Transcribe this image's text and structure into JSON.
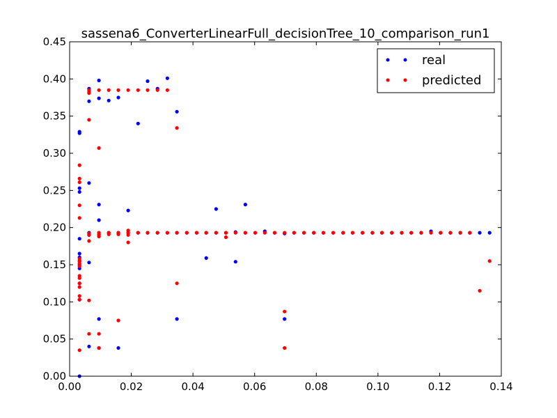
{
  "chart_data": {
    "type": "scatter",
    "title": "sassena6_ConverterLinearFull_decisionTree_10_comparison_run1",
    "xlabel": "",
    "ylabel": "",
    "xlim": [
      0.0,
      0.14
    ],
    "ylim": [
      0.0,
      0.45
    ],
    "x_ticks": [
      "0.00",
      "0.02",
      "0.04",
      "0.06",
      "0.08",
      "0.10",
      "0.12",
      "0.14"
    ],
    "y_ticks": [
      "0.00",
      "0.05",
      "0.10",
      "0.15",
      "0.20",
      "0.25",
      "0.30",
      "0.35",
      "0.40",
      "0.45"
    ],
    "legend_position": "top-right",
    "series": [
      {
        "name": "real",
        "color": "#0000ff",
        "points": [
          [
            0.0032,
            0.0
          ],
          [
            0.0032,
            0.103
          ],
          [
            0.0032,
            0.125
          ],
          [
            0.0032,
            0.145
          ],
          [
            0.0032,
            0.15
          ],
          [
            0.0032,
            0.155
          ],
          [
            0.0032,
            0.16
          ],
          [
            0.0032,
            0.165
          ],
          [
            0.0032,
            0.185
          ],
          [
            0.0032,
            0.248
          ],
          [
            0.0032,
            0.253
          ],
          [
            0.0032,
            0.327
          ],
          [
            0.0032,
            0.329
          ],
          [
            0.0063,
            0.04
          ],
          [
            0.0063,
            0.153
          ],
          [
            0.0063,
            0.26
          ],
          [
            0.0063,
            0.37
          ],
          [
            0.0063,
            0.387
          ],
          [
            0.0063,
            0.19
          ],
          [
            0.0063,
            0.193
          ],
          [
            0.0095,
            0.038
          ],
          [
            0.0095,
            0.077
          ],
          [
            0.0095,
            0.21
          ],
          [
            0.0095,
            0.231
          ],
          [
            0.0095,
            0.374
          ],
          [
            0.0095,
            0.398
          ],
          [
            0.0095,
            0.19
          ],
          [
            0.0127,
            0.371
          ],
          [
            0.0127,
            0.193
          ],
          [
            0.0158,
            0.038
          ],
          [
            0.0158,
            0.375
          ],
          [
            0.0158,
            0.193
          ],
          [
            0.019,
            0.223
          ],
          [
            0.019,
            0.193
          ],
          [
            0.0222,
            0.34
          ],
          [
            0.0222,
            0.193
          ],
          [
            0.0253,
            0.397
          ],
          [
            0.0253,
            0.193
          ],
          [
            0.0285,
            0.387
          ],
          [
            0.0285,
            0.193
          ],
          [
            0.0317,
            0.401
          ],
          [
            0.0317,
            0.193
          ],
          [
            0.0348,
            0.077
          ],
          [
            0.0348,
            0.356
          ],
          [
            0.0348,
            0.193
          ],
          [
            0.038,
            0.193
          ],
          [
            0.0412,
            0.193
          ],
          [
            0.0443,
            0.159
          ],
          [
            0.0443,
            0.193
          ],
          [
            0.0475,
            0.225
          ],
          [
            0.0475,
            0.193
          ],
          [
            0.0507,
            0.193
          ],
          [
            0.0538,
            0.154
          ],
          [
            0.0538,
            0.194
          ],
          [
            0.057,
            0.231
          ],
          [
            0.057,
            0.193
          ],
          [
            0.0602,
            0.193
          ],
          [
            0.0633,
            0.195
          ],
          [
            0.0665,
            0.193
          ],
          [
            0.0697,
            0.077
          ],
          [
            0.0697,
            0.192
          ],
          [
            0.0728,
            0.193
          ],
          [
            0.076,
            0.193
          ],
          [
            0.0792,
            0.193
          ],
          [
            0.0823,
            0.193
          ],
          [
            0.0855,
            0.193
          ],
          [
            0.0887,
            0.193
          ],
          [
            0.0918,
            0.193
          ],
          [
            0.095,
            0.193
          ],
          [
            0.0982,
            0.193
          ],
          [
            0.1013,
            0.193
          ],
          [
            0.1045,
            0.193
          ],
          [
            0.1077,
            0.193
          ],
          [
            0.1108,
            0.193
          ],
          [
            0.114,
            0.193
          ],
          [
            0.1172,
            0.195
          ],
          [
            0.1203,
            0.193
          ],
          [
            0.1235,
            0.193
          ],
          [
            0.1267,
            0.193
          ],
          [
            0.1298,
            0.193
          ],
          [
            0.133,
            0.193
          ],
          [
            0.1362,
            0.193
          ]
        ]
      },
      {
        "name": "predicted",
        "color": "#ff0000",
        "points": [
          [
            0.0032,
            0.035
          ],
          [
            0.0032,
            0.103
          ],
          [
            0.0032,
            0.108
          ],
          [
            0.0032,
            0.12
          ],
          [
            0.0032,
            0.125
          ],
          [
            0.0032,
            0.132
          ],
          [
            0.0032,
            0.135
          ],
          [
            0.0032,
            0.148
          ],
          [
            0.0032,
            0.152
          ],
          [
            0.0032,
            0.155
          ],
          [
            0.0032,
            0.158
          ],
          [
            0.0032,
            0.213
          ],
          [
            0.0032,
            0.23
          ],
          [
            0.0032,
            0.261
          ],
          [
            0.0032,
            0.266
          ],
          [
            0.0032,
            0.284
          ],
          [
            0.0063,
            0.057
          ],
          [
            0.0063,
            0.102
          ],
          [
            0.0063,
            0.182
          ],
          [
            0.0063,
            0.19
          ],
          [
            0.0063,
            0.192
          ],
          [
            0.0063,
            0.345
          ],
          [
            0.0063,
            0.381
          ],
          [
            0.0063,
            0.383
          ],
          [
            0.0063,
            0.385
          ],
          [
            0.0095,
            0.038
          ],
          [
            0.0095,
            0.057
          ],
          [
            0.0095,
            0.188
          ],
          [
            0.0095,
            0.191
          ],
          [
            0.0095,
            0.193
          ],
          [
            0.0095,
            0.307
          ],
          [
            0.0095,
            0.385
          ],
          [
            0.0127,
            0.191
          ],
          [
            0.0127,
            0.193
          ],
          [
            0.0127,
            0.385
          ],
          [
            0.0158,
            0.075
          ],
          [
            0.0158,
            0.191
          ],
          [
            0.0158,
            0.193
          ],
          [
            0.0158,
            0.385
          ],
          [
            0.019,
            0.18
          ],
          [
            0.019,
            0.19
          ],
          [
            0.019,
            0.193
          ],
          [
            0.019,
            0.196
          ],
          [
            0.019,
            0.385
          ],
          [
            0.0222,
            0.193
          ],
          [
            0.0222,
            0.385
          ],
          [
            0.0253,
            0.193
          ],
          [
            0.0253,
            0.385
          ],
          [
            0.0285,
            0.193
          ],
          [
            0.0285,
            0.385
          ],
          [
            0.0317,
            0.193
          ],
          [
            0.0317,
            0.385
          ],
          [
            0.0348,
            0.125
          ],
          [
            0.0348,
            0.193
          ],
          [
            0.0348,
            0.334
          ],
          [
            0.038,
            0.193
          ],
          [
            0.0412,
            0.193
          ],
          [
            0.0443,
            0.193
          ],
          [
            0.0475,
            0.193
          ],
          [
            0.0507,
            0.187
          ],
          [
            0.0507,
            0.193
          ],
          [
            0.0538,
            0.193
          ],
          [
            0.057,
            0.193
          ],
          [
            0.0602,
            0.193
          ],
          [
            0.0633,
            0.193
          ],
          [
            0.0665,
            0.193
          ],
          [
            0.0697,
            0.038
          ],
          [
            0.0697,
            0.087
          ],
          [
            0.0697,
            0.193
          ],
          [
            0.0728,
            0.193
          ],
          [
            0.076,
            0.193
          ],
          [
            0.0792,
            0.193
          ],
          [
            0.0823,
            0.193
          ],
          [
            0.0855,
            0.193
          ],
          [
            0.0887,
            0.193
          ],
          [
            0.0918,
            0.193
          ],
          [
            0.095,
            0.193
          ],
          [
            0.0982,
            0.193
          ],
          [
            0.1013,
            0.193
          ],
          [
            0.1045,
            0.193
          ],
          [
            0.1077,
            0.193
          ],
          [
            0.1108,
            0.193
          ],
          [
            0.114,
            0.193
          ],
          [
            0.1172,
            0.193
          ],
          [
            0.1203,
            0.193
          ],
          [
            0.1235,
            0.193
          ],
          [
            0.1267,
            0.193
          ],
          [
            0.1298,
            0.193
          ],
          [
            0.133,
            0.115
          ],
          [
            0.1362,
            0.155
          ]
        ]
      }
    ]
  }
}
